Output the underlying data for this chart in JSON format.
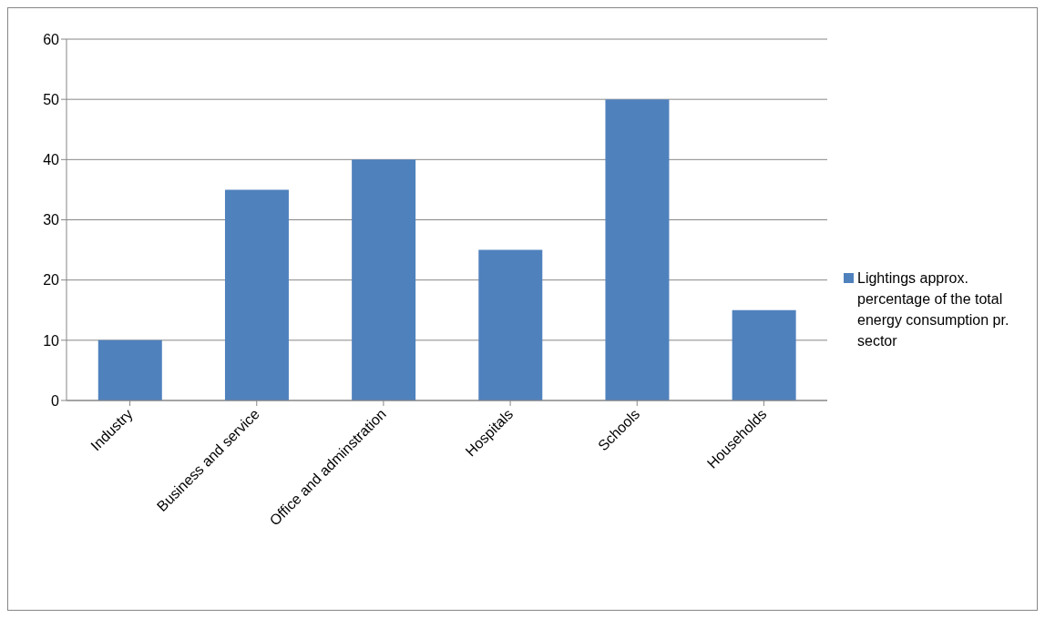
{
  "chart_data": {
    "type": "bar",
    "categories": [
      "Industry",
      "Business and service",
      "Office and adminstration",
      "Hospitals",
      "Schools",
      "Households"
    ],
    "series": [
      {
        "name": "Lightings approx. percentage of the total energy consumption pr. sector",
        "color": "#4f81bd",
        "values": [
          10,
          35,
          40,
          25,
          50,
          15
        ]
      }
    ],
    "ylim": [
      0,
      60
    ],
    "yticks": [
      0,
      10,
      20,
      30,
      40,
      50,
      60
    ],
    "grid": "y",
    "legend": "right"
  }
}
